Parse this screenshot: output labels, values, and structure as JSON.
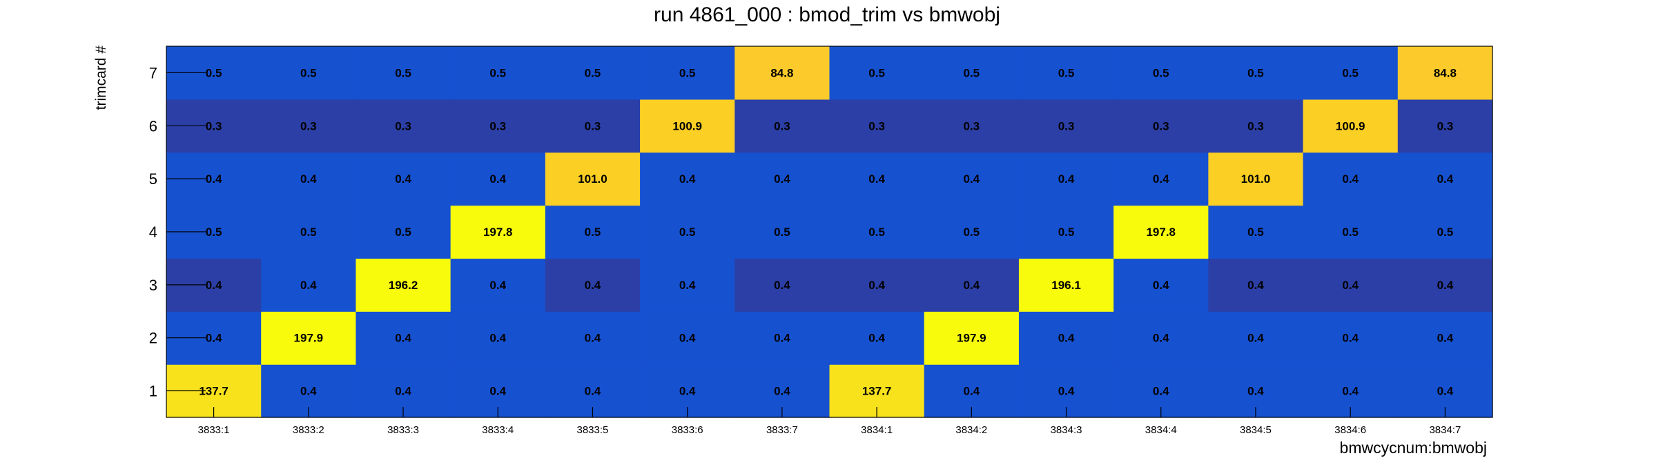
{
  "chart_data": {
    "type": "heatmap",
    "title": "run 4861_000 : bmod_trim vs bmwobj",
    "xlabel": "bmwcycnum:bmwobj",
    "ylabel": "trimcard #",
    "x_categories": [
      "3833:1",
      "3833:2",
      "3833:3",
      "3833:4",
      "3833:5",
      "3833:6",
      "3833:7",
      "3834:1",
      "3834:2",
      "3834:3",
      "3834:4",
      "3834:5",
      "3834:6",
      "3834:7"
    ],
    "y_categories": [
      "1",
      "2",
      "3",
      "4",
      "5",
      "6",
      "7"
    ],
    "values": [
      [
        137.7,
        0.4,
        0.4,
        0.4,
        0.4,
        0.4,
        0.4,
        137.7,
        0.4,
        0.4,
        0.4,
        0.4,
        0.4,
        0.4
      ],
      [
        0.4,
        197.9,
        0.4,
        0.4,
        0.4,
        0.4,
        0.4,
        0.4,
        197.9,
        0.4,
        0.4,
        0.4,
        0.4,
        0.4
      ],
      [
        0.4,
        0.4,
        196.2,
        0.4,
        0.4,
        0.4,
        0.4,
        0.4,
        0.4,
        196.1,
        0.4,
        0.4,
        0.4,
        0.4
      ],
      [
        0.5,
        0.5,
        0.5,
        197.8,
        0.5,
        0.5,
        0.5,
        0.5,
        0.5,
        0.5,
        197.8,
        0.5,
        0.5,
        0.5
      ],
      [
        0.4,
        0.4,
        0.4,
        0.4,
        101.0,
        0.4,
        0.4,
        0.4,
        0.4,
        0.4,
        0.4,
        101.0,
        0.4,
        0.4
      ],
      [
        0.3,
        0.3,
        0.3,
        0.3,
        0.3,
        100.9,
        0.3,
        0.3,
        0.3,
        0.3,
        0.3,
        0.3,
        100.9,
        0.3
      ],
      [
        0.5,
        0.5,
        0.5,
        0.5,
        0.5,
        0.5,
        84.8,
        0.5,
        0.5,
        0.5,
        0.5,
        0.5,
        0.5,
        84.8
      ]
    ],
    "value_labels": [
      [
        "137.7",
        "0.4",
        "0.4",
        "0.4",
        "0.4",
        "0.4",
        "0.4",
        "137.7",
        "0.4",
        "0.4",
        "0.4",
        "0.4",
        "0.4",
        "0.4"
      ],
      [
        "0.4",
        "197.9",
        "0.4",
        "0.4",
        "0.4",
        "0.4",
        "0.4",
        "0.4",
        "197.9",
        "0.4",
        "0.4",
        "0.4",
        "0.4",
        "0.4"
      ],
      [
        "0.4",
        "0.4",
        "196.2",
        "0.4",
        "0.4",
        "0.4",
        "0.4",
        "0.4",
        "0.4",
        "196.1",
        "0.4",
        "0.4",
        "0.4",
        "0.4"
      ],
      [
        "0.5",
        "0.5",
        "0.5",
        "197.8",
        "0.5",
        "0.5",
        "0.5",
        "0.5",
        "0.5",
        "0.5",
        "197.8",
        "0.5",
        "0.5",
        "0.5"
      ],
      [
        "0.4",
        "0.4",
        "0.4",
        "0.4",
        "101.0",
        "0.4",
        "0.4",
        "0.4",
        "0.4",
        "0.4",
        "0.4",
        "101.0",
        "0.4",
        "0.4"
      ],
      [
        "0.3",
        "0.3",
        "0.3",
        "0.3",
        "0.3",
        "100.9",
        "0.3",
        "0.3",
        "0.3",
        "0.3",
        "0.3",
        "0.3",
        "100.9",
        "0.3"
      ],
      [
        "0.5",
        "0.5",
        "0.5",
        "0.5",
        "0.5",
        "0.5",
        "84.8",
        "0.5",
        "0.5",
        "0.5",
        "0.5",
        "0.5",
        "0.5",
        "84.8"
      ]
    ],
    "cell_colors": [
      [
        "#f7e21c",
        "#1651d0",
        "#1651d0",
        "#1651d0",
        "#1651d0",
        "#1651d0",
        "#1651d0",
        "#f7e21c",
        "#1651d0",
        "#1651d0",
        "#1651d0",
        "#1651d0",
        "#1651d0",
        "#1651d0"
      ],
      [
        "#1651d0",
        "#f8fb0c",
        "#1651d0",
        "#1651d0",
        "#1651d0",
        "#1651d0",
        "#1651d0",
        "#1651d0",
        "#f8fb0c",
        "#1651d0",
        "#1651d0",
        "#1651d0",
        "#1651d0",
        "#1651d0"
      ],
      [
        "#2b3fa6",
        "#1651d0",
        "#f8fb0c",
        "#1651d0",
        "#2b3fa6",
        "#1651d0",
        "#2b3fa6",
        "#2b3fa6",
        "#2b3fa6",
        "#f8fb0c",
        "#1651d0",
        "#2b3fa6",
        "#2b3fa6",
        "#2b3fa6"
      ],
      [
        "#1651d0",
        "#1651d0",
        "#1651d0",
        "#f8fb0c",
        "#1651d0",
        "#1651d0",
        "#1651d0",
        "#1651d0",
        "#1651d0",
        "#1651d0",
        "#f8fb0c",
        "#1651d0",
        "#1651d0",
        "#1651d0"
      ],
      [
        "#1651d0",
        "#1651d0",
        "#1651d0",
        "#1651d0",
        "#fbcf24",
        "#1651d0",
        "#1651d0",
        "#1651d0",
        "#1651d0",
        "#1651d0",
        "#1651d0",
        "#fbcf24",
        "#1651d0",
        "#1651d0"
      ],
      [
        "#2b3fa6",
        "#2b3fa6",
        "#2b3fa6",
        "#2b3fa6",
        "#2b3fa6",
        "#fbcf24",
        "#2b3fa6",
        "#2b3fa6",
        "#2b3fa6",
        "#2b3fa6",
        "#2b3fa6",
        "#2b3fa6",
        "#fbcf24",
        "#2b3fa6"
      ],
      [
        "#1651d0",
        "#1651d0",
        "#1651d0",
        "#1651d0",
        "#1651d0",
        "#1651d0",
        "#fccb2b",
        "#1651d0",
        "#1651d0",
        "#1651d0",
        "#1651d0",
        "#1651d0",
        "#1651d0",
        "#fccb2b"
      ]
    ],
    "colors": {
      "frame": "#000000",
      "cell_label": "#000000",
      "text": "#000000"
    },
    "grid": false,
    "legend": "none"
  }
}
